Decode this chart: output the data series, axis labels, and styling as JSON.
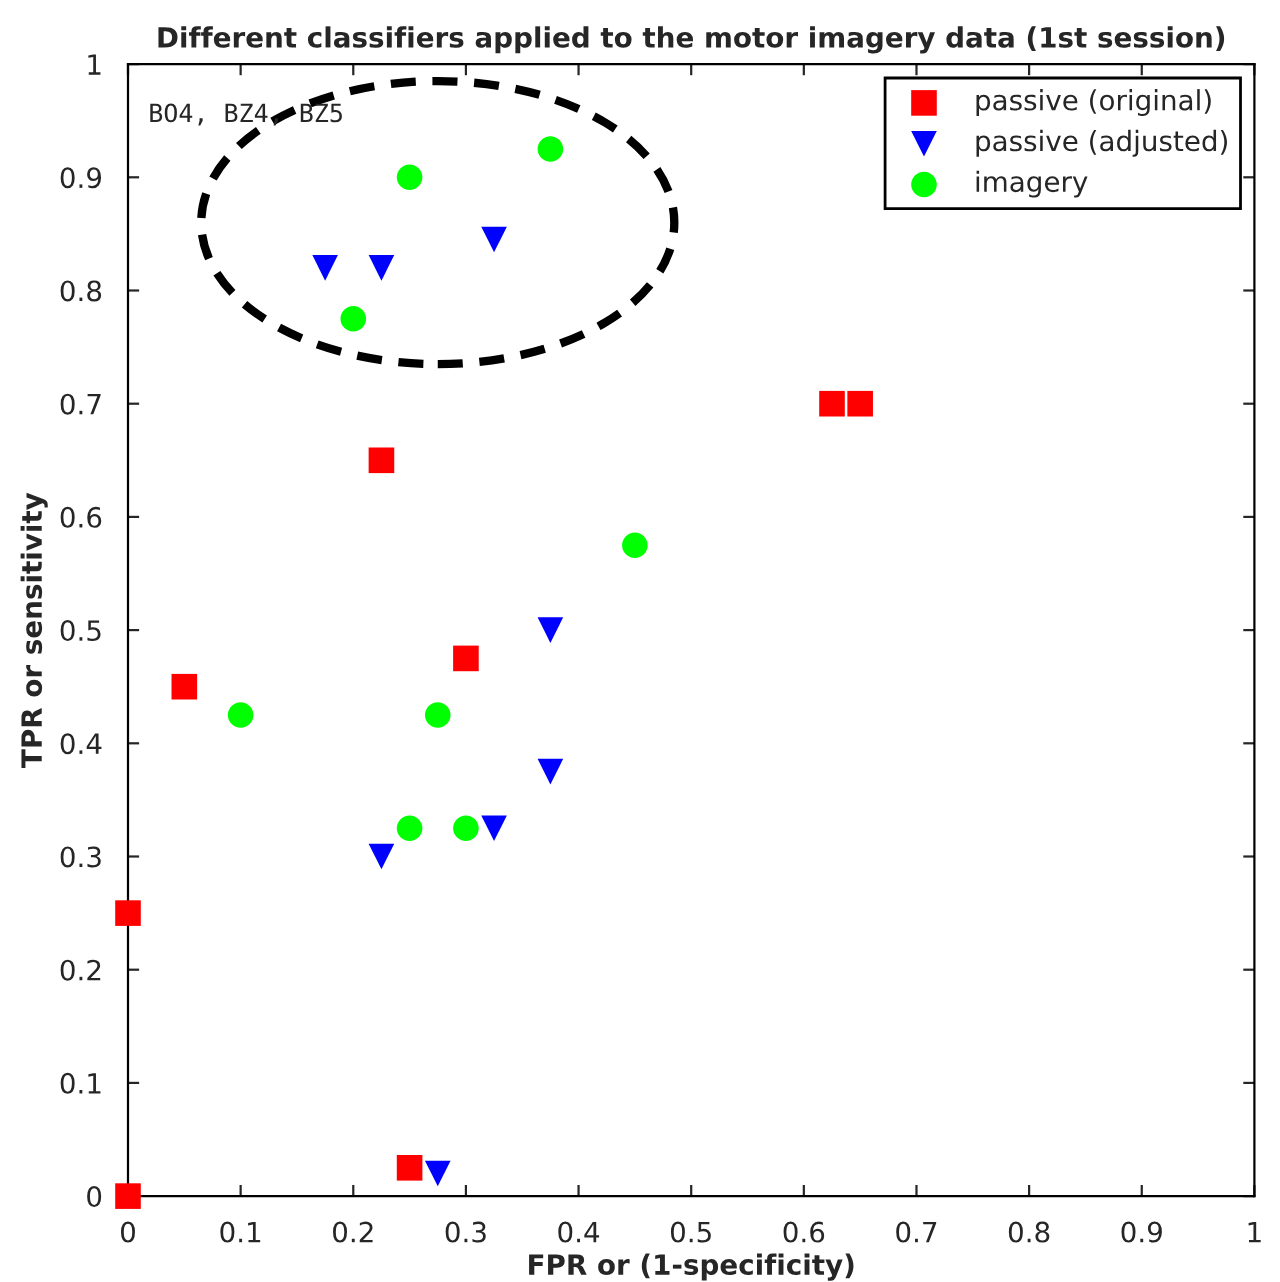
{
  "chart_data": {
    "type": "scatter",
    "title": "Different classifiers applied to the motor imagery data (1st session)",
    "xlabel": "FPR or (1-specificity)",
    "ylabel": "TPR or sensitivity",
    "annotations": [
      "BO4, BZ4, BZ5"
    ],
    "xlim": [
      0,
      1
    ],
    "ylim": [
      0,
      1
    ],
    "xticks": [
      0,
      0.1,
      0.2,
      0.3,
      0.4,
      0.5,
      0.6,
      0.7,
      0.8,
      0.9,
      1
    ],
    "yticks": [
      0,
      0.1,
      0.2,
      0.3,
      0.4,
      0.5,
      0.6,
      0.7,
      0.8,
      0.9,
      1
    ],
    "grid": false,
    "legend": "top right",
    "series": [
      {
        "name": "passive (original)",
        "color": "#ff0000",
        "marker": "square",
        "x": [
          0,
          0,
          0.05,
          0.225,
          0.3,
          0.25,
          0.625,
          0.65
        ],
        "values": [
          0,
          0.25,
          0.45,
          0.65,
          0.475,
          0.025,
          0.7,
          0.7
        ]
      },
      {
        "name": "passive (adjusted)",
        "color": "#0000ff",
        "marker": "triangle",
        "x": [
          0.175,
          0.225,
          0.325,
          0.375,
          0.375,
          0.225,
          0.325,
          0.275
        ],
        "values": [
          0.82,
          0.82,
          0.845,
          0.5,
          0.375,
          0.3,
          0.325,
          0.02
        ]
      },
      {
        "name": "imagery",
        "color": "#00ff00",
        "marker": "circle",
        "x": [
          0.25,
          0.375,
          0.2,
          0.45,
          0.1,
          0.275,
          0.25,
          0.3
        ],
        "values": [
          0.9,
          0.925,
          0.775,
          0.575,
          0.425,
          0.425,
          0.325,
          0.325
        ]
      }
    ]
  }
}
